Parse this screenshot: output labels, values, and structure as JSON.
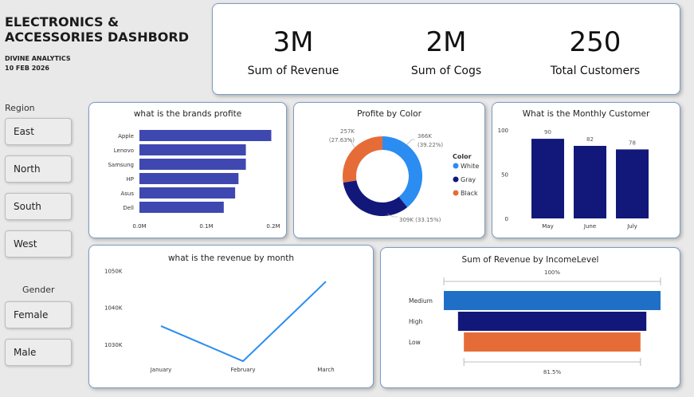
{
  "header": {
    "title_line1": "ELECTRONICS &",
    "title_line2": "ACCESSORIES DASHBORD",
    "company": "DIVINE ANALYTICS",
    "date": "10 FEB 2026"
  },
  "kpis": [
    {
      "value": "3M",
      "label": "Sum of Revenue"
    },
    {
      "value": "2M",
      "label": "Sum of Cogs"
    },
    {
      "value": "250",
      "label": "Total Customers"
    }
  ],
  "region_slicer": {
    "label": "Region",
    "items": [
      "East",
      "North",
      "South",
      "West"
    ]
  },
  "gender_slicer": {
    "label": "Gender",
    "items": [
      "Female",
      "Male"
    ]
  },
  "colors": {
    "bar_blue": "#3f48b0",
    "navy": "#11187a",
    "light_blue": "#2b8cf2",
    "orange": "#e66c37",
    "funnel_blue": "#1f6fc6"
  },
  "chart_data": [
    {
      "id": "brands",
      "type": "bar",
      "orientation": "horizontal",
      "title": "what is the brands profite",
      "categories": [
        "Apple",
        "Lenovo",
        "Samsung",
        "HP",
        "Asus",
        "Dell"
      ],
      "values": [
        0.197,
        0.159,
        0.159,
        0.148,
        0.143,
        0.126
      ],
      "xlim": [
        0,
        0.2
      ],
      "xticks": [
        "0.0M",
        "0.1M",
        "0.2M"
      ]
    },
    {
      "id": "color",
      "type": "pie",
      "variant": "donut",
      "title": "Profite by Color",
      "legend_title": "Color",
      "labels": [
        "White",
        "Gray",
        "Black"
      ],
      "values": [
        366,
        309,
        257
      ],
      "slice_labels": [
        {
          "line1": "366K",
          "line2": "(39.22%)"
        },
        {
          "line1": "309K (33.15%)",
          "line2": ""
        },
        {
          "line1": "257K",
          "line2": "(27.63%)"
        }
      ]
    },
    {
      "id": "monthly_customers",
      "type": "bar",
      "title": "What is the Monthly Customer",
      "categories": [
        "May",
        "June",
        "July"
      ],
      "values": [
        90,
        82,
        78
      ],
      "value_labels": [
        "90",
        "82",
        "78"
      ],
      "ylim": [
        0,
        100
      ],
      "yticks": [
        "100",
        "50",
        "0"
      ]
    },
    {
      "id": "revenue_month",
      "type": "line",
      "title": "what is the revenue by month",
      "categories": [
        "January",
        "February",
        "March"
      ],
      "values": [
        1035,
        1025.5,
        1047
      ],
      "ylim": [
        1024,
        1052
      ],
      "yticks": [
        {
          "v": 1050,
          "t": "1050K"
        },
        {
          "v": 1040,
          "t": "1040K"
        },
        {
          "v": 1030,
          "t": "1030K"
        }
      ]
    },
    {
      "id": "income_funnel",
      "type": "bar",
      "variant": "funnel",
      "title": "Sum of Revenue by IncomeLevel",
      "categories": [
        "Medium",
        "High",
        "Low"
      ],
      "values": [
        100,
        86.9,
        81.5
      ],
      "top_label": "100%",
      "bottom_label": "81.5%"
    }
  ]
}
